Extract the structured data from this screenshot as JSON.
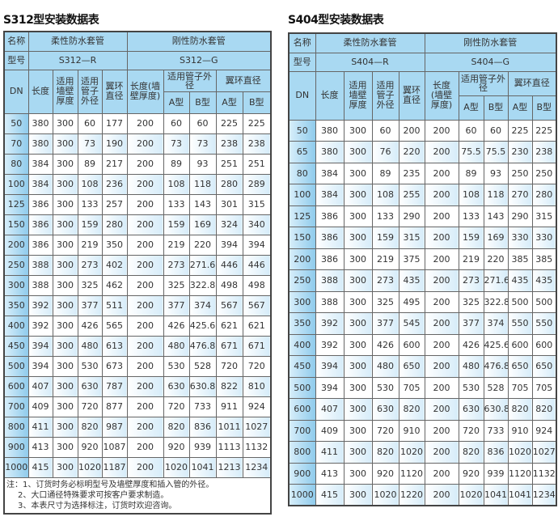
{
  "left": {
    "title": "S312型安装数据表",
    "h_name": "名称",
    "h_flex": "柔性防水套管",
    "h_rigid": "刚性防水套管",
    "h_model": "型号",
    "model_r": "S312—R",
    "model_g": "S312—G",
    "h_dn": "DN",
    "h_len": "长度",
    "h_wall": "适用墙壁厚度",
    "h_pipe": "适用管子外径",
    "h_ring": "翼环直径",
    "h_len2": "长度(墙壁厚度)",
    "h_pipe2": "适用管子外径",
    "h_ring2": "翼环直径",
    "h_a": "A型",
    "h_b": "B型",
    "h_a2": "A型",
    "h_b2": "B型",
    "rows": [
      [
        "50",
        "380",
        "300",
        "60",
        "177",
        "200",
        "60",
        "60",
        "225",
        "225"
      ],
      [
        "70",
        "380",
        "300",
        "73",
        "190",
        "200",
        "73",
        "73",
        "238",
        "238"
      ],
      [
        "80",
        "384",
        "300",
        "89",
        "217",
        "200",
        "89",
        "93",
        "251",
        "251"
      ],
      [
        "100",
        "384",
        "300",
        "108",
        "236",
        "200",
        "108",
        "118",
        "280",
        "289"
      ],
      [
        "125",
        "386",
        "300",
        "133",
        "257",
        "200",
        "133",
        "143",
        "301",
        "315"
      ],
      [
        "150",
        "386",
        "300",
        "159",
        "280",
        "200",
        "159",
        "169",
        "324",
        "340"
      ],
      [
        "200",
        "386",
        "300",
        "219",
        "350",
        "200",
        "219",
        "220",
        "394",
        "394"
      ],
      [
        "250",
        "388",
        "300",
        "273",
        "402",
        "200",
        "273",
        "271.6",
        "446",
        "446"
      ],
      [
        "300",
        "388",
        "300",
        "325",
        "462",
        "200",
        "325",
        "322.8",
        "498",
        "498"
      ],
      [
        "350",
        "392",
        "300",
        "377",
        "511",
        "200",
        "377",
        "374",
        "567",
        "567"
      ],
      [
        "400",
        "392",
        "300",
        "426",
        "565",
        "200",
        "426",
        "425.6",
        "621",
        "621"
      ],
      [
        "450",
        "394",
        "300",
        "480",
        "613",
        "200",
        "480",
        "476.8",
        "671",
        "671"
      ],
      [
        "500",
        "394",
        "300",
        "530",
        "673",
        "200",
        "530",
        "528",
        "720",
        "720"
      ],
      [
        "600",
        "407",
        "300",
        "630",
        "787",
        "200",
        "630",
        "630.8",
        "822",
        "810"
      ],
      [
        "700",
        "409",
        "300",
        "720",
        "877",
        "200",
        "720",
        "733",
        "911",
        "924"
      ],
      [
        "800",
        "411",
        "300",
        "820",
        "987",
        "200",
        "820",
        "836",
        "1011",
        "1027"
      ],
      [
        "900",
        "413",
        "300",
        "920",
        "1087",
        "200",
        "920",
        "939",
        "1113",
        "1132"
      ],
      [
        "1000",
        "415",
        "300",
        "1020",
        "1187",
        "200",
        "1020",
        "1041",
        "1213",
        "1234"
      ]
    ],
    "notes": [
      "注：1、订货时务必标明型号及墙壁厚度和插入管的外径。",
      "2、大口通径特殊要求可按客户要求制造。",
      "3、本表尺寸为选择标注，订货时欢迎咨询。"
    ]
  },
  "right": {
    "title": "S404型安装数据表",
    "h_name": "名称",
    "h_flex": "柔性防水套管",
    "h_rigid": "刚性防水套管",
    "h_model": "型号",
    "model_r": "S404—R",
    "model_g": "S404—G",
    "h_dn": "DN",
    "h_len": "长度",
    "h_wall": "适用墙壁厚度",
    "h_pipe": "适用管子外径",
    "h_ring": "翼环直径",
    "h_len2": "长度(墙壁厚度)",
    "h_pipe2": "适用管子外径",
    "h_ring2": "翼环直径",
    "h_a": "A型",
    "h_b": "B型",
    "h_a2": "A型",
    "h_b2": "B型",
    "rows": [
      [
        "50",
        "380",
        "300",
        "60",
        "200",
        "200",
        "60",
        "60",
        "225",
        "225"
      ],
      [
        "65",
        "380",
        "300",
        "76",
        "220",
        "200",
        "75.5",
        "75.5",
        "230",
        "238"
      ],
      [
        "80",
        "384",
        "300",
        "89",
        "235",
        "200",
        "89",
        "93",
        "250",
        "250"
      ],
      [
        "100",
        "384",
        "300",
        "108",
        "255",
        "200",
        "108",
        "118",
        "270",
        "280"
      ],
      [
        "125",
        "386",
        "300",
        "133",
        "290",
        "200",
        "133",
        "143",
        "290",
        "315"
      ],
      [
        "150",
        "386",
        "300",
        "159",
        "315",
        "200",
        "159",
        "169",
        "330",
        "330"
      ],
      [
        "200",
        "386",
        "300",
        "219",
        "375",
        "200",
        "219",
        "220",
        "385",
        "385"
      ],
      [
        "250",
        "388",
        "300",
        "273",
        "435",
        "200",
        "273",
        "271.6",
        "435",
        "435"
      ],
      [
        "300",
        "388",
        "300",
        "325",
        "495",
        "200",
        "325",
        "322.8",
        "500",
        "500"
      ],
      [
        "350",
        "392",
        "300",
        "377",
        "545",
        "200",
        "377",
        "374",
        "550",
        "550"
      ],
      [
        "400",
        "392",
        "300",
        "426",
        "600",
        "200",
        "426",
        "425.6",
        "600",
        "600"
      ],
      [
        "450",
        "394",
        "300",
        "480",
        "650",
        "200",
        "480",
        "476.8",
        "650",
        "650"
      ],
      [
        "500",
        "394",
        "300",
        "530",
        "705",
        "200",
        "530",
        "528",
        "705",
        "705"
      ],
      [
        "600",
        "407",
        "300",
        "630",
        "820",
        "200",
        "630",
        "630.8",
        "820",
        "820"
      ],
      [
        "700",
        "409",
        "300",
        "720",
        "910",
        "200",
        "720",
        "733",
        "910",
        "924"
      ],
      [
        "800",
        "411",
        "300",
        "820",
        "1020",
        "200",
        "820",
        "836",
        "1020",
        "1027"
      ],
      [
        "900",
        "413",
        "300",
        "920",
        "1120",
        "200",
        "920",
        "939",
        "1120",
        "1132"
      ],
      [
        "1000",
        "415",
        "300",
        "1020",
        "1220",
        "200",
        "1020",
        "1041",
        "1041",
        "1234"
      ]
    ]
  }
}
